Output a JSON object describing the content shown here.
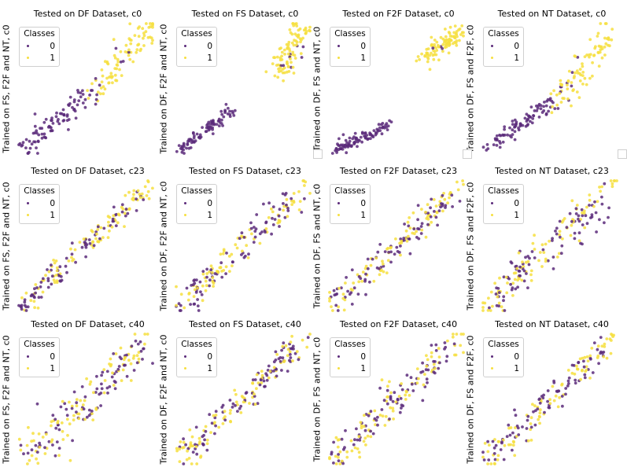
{
  "figure": {
    "legend_title": "Classes",
    "class_labels": [
      "0",
      "1"
    ],
    "colors": {
      "class_0": "#5b2a7a",
      "class_1": "#f6df3f",
      "legend_border": "#d0d0d0"
    }
  },
  "chart_data": [
    {
      "type": "scatter",
      "row": 0,
      "col": 0,
      "title": "Tested on DF Dataset, c0",
      "ylabel": "Trained on FS, F2F and NT, c0",
      "legend": "top-left",
      "clusters": [
        {
          "class": 0,
          "n": 95,
          "from": [
            0.02,
            0.02
          ],
          "to": [
            0.58,
            0.5
          ],
          "spread": 0.045
        },
        {
          "class": 1,
          "n": 85,
          "from": [
            0.55,
            0.45
          ],
          "to": [
            0.98,
            0.98
          ],
          "spread": 0.05
        },
        {
          "class": 0,
          "n": 4,
          "from": [
            0.7,
            0.6
          ],
          "to": [
            0.9,
            0.85
          ],
          "spread": 0.04
        }
      ]
    },
    {
      "type": "scatter",
      "row": 0,
      "col": 1,
      "title": "Tested on FS Dataset, c0",
      "ylabel": "Trained on DF, F2F and NT, c0",
      "legend": "top-left",
      "clusters": [
        {
          "class": 0,
          "n": 90,
          "from": [
            0.02,
            0.02
          ],
          "to": [
            0.42,
            0.33
          ],
          "spread": 0.022
        },
        {
          "class": 1,
          "n": 90,
          "from": [
            0.76,
            0.62
          ],
          "to": [
            0.95,
            0.98
          ],
          "spread": 0.045
        },
        {
          "class": 0,
          "n": 8,
          "from": [
            0.78,
            0.62
          ],
          "to": [
            0.95,
            0.88
          ],
          "spread": 0.035
        }
      ]
    },
    {
      "type": "scatter",
      "row": 0,
      "col": 2,
      "title": "Tested on F2F Dataset, c0",
      "ylabel": "Trained on DF, FS and NT, c0",
      "legend": "top-left",
      "clusters": [
        {
          "class": 0,
          "n": 95,
          "from": [
            0.05,
            0.03
          ],
          "to": [
            0.45,
            0.22
          ],
          "spread": 0.022
        },
        {
          "class": 1,
          "n": 95,
          "from": [
            0.7,
            0.75
          ],
          "to": [
            0.98,
            0.93
          ],
          "spread": 0.035
        },
        {
          "class": 0,
          "n": 3,
          "from": [
            0.75,
            0.78
          ],
          "to": [
            0.85,
            0.82
          ],
          "spread": 0.02
        }
      ]
    },
    {
      "type": "scatter",
      "row": 0,
      "col": 3,
      "title": "Tested on NT Dataset, c0",
      "ylabel": "Trained on DF, FS and F2F, c0",
      "legend": "top-left",
      "clusters": [
        {
          "class": 0,
          "n": 90,
          "from": [
            0.02,
            0.03
          ],
          "to": [
            0.55,
            0.42
          ],
          "spread": 0.03
        },
        {
          "class": 1,
          "n": 85,
          "from": [
            0.55,
            0.38
          ],
          "to": [
            0.97,
            0.95
          ],
          "spread": 0.05
        },
        {
          "class": 0,
          "n": 8,
          "from": [
            0.6,
            0.4
          ],
          "to": [
            0.7,
            0.7
          ],
          "spread": 0.04
        }
      ]
    },
    {
      "type": "scatter",
      "row": 1,
      "col": 0,
      "title": "Tested on DF Dataset, c23",
      "ylabel": "Trained on FS, F2F and NT, c0",
      "legend": "top-left",
      "clusters": [
        {
          "class": 0,
          "n": 80,
          "from": [
            0.02,
            0.02
          ],
          "to": [
            0.9,
            0.9
          ],
          "spread": 0.04
        },
        {
          "class": 1,
          "n": 95,
          "from": [
            0.02,
            0.02
          ],
          "to": [
            0.98,
            0.98
          ],
          "spread": 0.04
        }
      ]
    },
    {
      "type": "scatter",
      "row": 1,
      "col": 1,
      "title": "Tested on FS Dataset, c23",
      "ylabel": "Trained on DF, F2F and NT, c0",
      "legend": "top-left",
      "clusters": [
        {
          "class": 0,
          "n": 85,
          "from": [
            0.02,
            0.02
          ],
          "to": [
            0.9,
            0.88
          ],
          "spread": 0.05
        },
        {
          "class": 1,
          "n": 90,
          "from": [
            0.02,
            0.02
          ],
          "to": [
            0.98,
            0.98
          ],
          "spread": 0.05
        }
      ]
    },
    {
      "type": "scatter",
      "row": 1,
      "col": 2,
      "title": "Tested on F2F Dataset, c23",
      "ylabel": "Trained on DF, FS and NT, c0",
      "legend": "top-left",
      "clusters": [
        {
          "class": 0,
          "n": 85,
          "from": [
            0.02,
            0.02
          ],
          "to": [
            0.92,
            0.9
          ],
          "spread": 0.045
        },
        {
          "class": 1,
          "n": 90,
          "from": [
            0.02,
            0.02
          ],
          "to": [
            0.98,
            0.98
          ],
          "spread": 0.045
        }
      ]
    },
    {
      "type": "scatter",
      "row": 1,
      "col": 3,
      "title": "Tested on NT Dataset, c23",
      "ylabel": "Trained on DF, FS and F2F, c0",
      "legend": "top-left",
      "clusters": [
        {
          "class": 0,
          "n": 90,
          "from": [
            0.02,
            0.02
          ],
          "to": [
            0.92,
            0.9
          ],
          "spread": 0.07
        },
        {
          "class": 1,
          "n": 90,
          "from": [
            0.02,
            0.02
          ],
          "to": [
            0.98,
            0.98
          ],
          "spread": 0.07
        }
      ]
    },
    {
      "type": "scatter",
      "row": 2,
      "col": 0,
      "title": "Tested on DF Dataset, c40",
      "ylabel": "Trained on FS, F2F and NT, c0",
      "legend": "top-left",
      "clusters": [
        {
          "class": 0,
          "n": 85,
          "from": [
            0.02,
            0.02
          ],
          "to": [
            0.92,
            0.9
          ],
          "spread": 0.07
        },
        {
          "class": 1,
          "n": 90,
          "from": [
            0.05,
            0.02
          ],
          "to": [
            0.98,
            0.98
          ],
          "spread": 0.07
        }
      ]
    },
    {
      "type": "scatter",
      "row": 2,
      "col": 1,
      "title": "Tested on FS Dataset, c40",
      "ylabel": "Trained on DF, F2F and NT, c0",
      "legend": "top-left",
      "clusters": [
        {
          "class": 0,
          "n": 90,
          "from": [
            0.02,
            0.02
          ],
          "to": [
            0.92,
            0.92
          ],
          "spread": 0.05
        },
        {
          "class": 1,
          "n": 90,
          "from": [
            0.02,
            0.02
          ],
          "to": [
            0.98,
            0.98
          ],
          "spread": 0.05
        }
      ]
    },
    {
      "type": "scatter",
      "row": 2,
      "col": 2,
      "title": "Tested on F2F Dataset, c40",
      "ylabel": "Trained on DF, FS and NT, c0",
      "legend": "top-left",
      "clusters": [
        {
          "class": 0,
          "n": 85,
          "from": [
            0.02,
            0.02
          ],
          "to": [
            0.92,
            0.92
          ],
          "spread": 0.055
        },
        {
          "class": 1,
          "n": 90,
          "from": [
            0.05,
            0.05
          ],
          "to": [
            0.98,
            0.98
          ],
          "spread": 0.055
        }
      ]
    },
    {
      "type": "scatter",
      "row": 2,
      "col": 3,
      "title": "Tested on NT Dataset, c40",
      "ylabel": "Trained on DF, FS and F2F, c0",
      "legend": "top-left",
      "clusters": [
        {
          "class": 0,
          "n": 85,
          "from": [
            0.02,
            0.02
          ],
          "to": [
            0.92,
            0.92
          ],
          "spread": 0.05
        },
        {
          "class": 1,
          "n": 90,
          "from": [
            0.02,
            0.02
          ],
          "to": [
            0.98,
            0.98
          ],
          "spread": 0.05
        }
      ]
    }
  ]
}
